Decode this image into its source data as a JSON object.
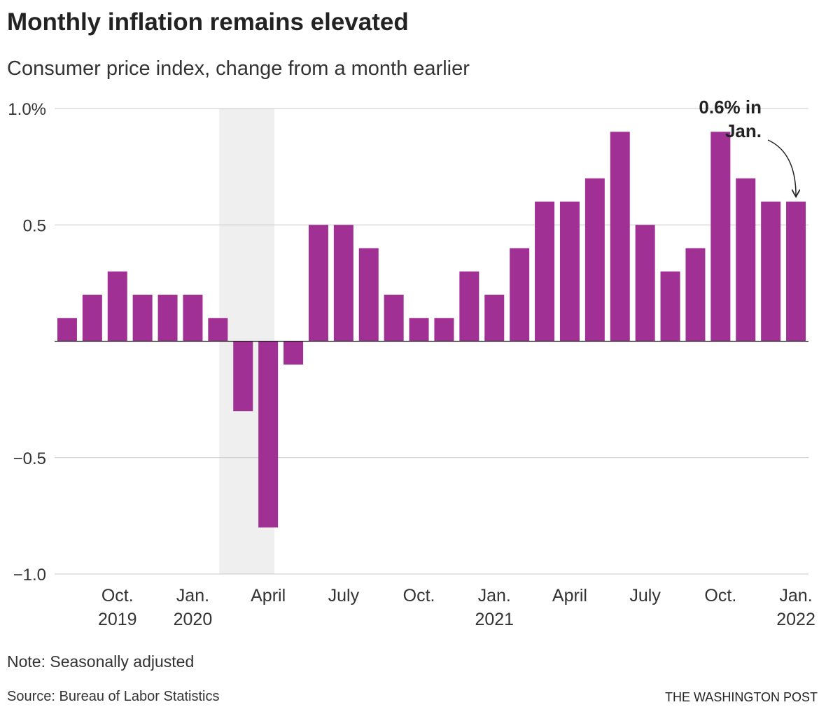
{
  "chart_data": {
    "type": "bar",
    "title": "Monthly inflation remains elevated",
    "subtitle": "Consumer price index, change from a month earlier",
    "categories": [
      null,
      null,
      "Oct.\n2019",
      null,
      null,
      "Jan.\n2020",
      null,
      null,
      "April",
      null,
      null,
      "July",
      null,
      null,
      "Oct.",
      null,
      null,
      "Jan.\n2021",
      null,
      null,
      "April",
      null,
      null,
      "July",
      null,
      null,
      "Oct.",
      null,
      null,
      "Jan.\n2022"
    ],
    "values": [
      0.1,
      0.2,
      0.3,
      0.2,
      0.2,
      0.2,
      0.1,
      -0.3,
      -0.8,
      -0.1,
      0.5,
      0.5,
      0.4,
      0.2,
      0.1,
      0.1,
      0.3,
      0.2,
      0.4,
      0.6,
      0.6,
      0.7,
      0.9,
      0.5,
      0.3,
      0.4,
      0.9,
      0.7,
      0.6,
      0.6
    ],
    "color": "#a03094",
    "ylim": [
      -1.0,
      1.0
    ],
    "yticks": [
      {
        "value": 1.0,
        "label": "1.0%"
      },
      0.5,
      {
        "value": -0.5,
        "label": "−0.5"
      },
      {
        "value": -1.0,
        "label": "−1.0"
      }
    ],
    "grid": true,
    "shaded_categories": [
      6,
      8
    ],
    "annotation": "0.6% in\nJan.",
    "note": "Note: Seasonally adjusted",
    "source": "Source: Bureau of Labor Statistics",
    "credit": "THE WASHINGTON POST"
  }
}
